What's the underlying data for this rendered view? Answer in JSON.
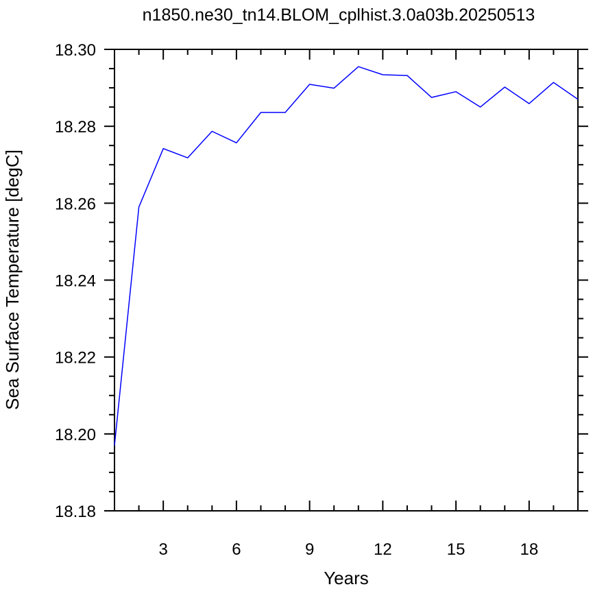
{
  "chart_data": {
    "type": "line",
    "title": "n1850.ne30_tn14.BLOM_cplhist.3.0a03b.20250513",
    "xlabel": "Years",
    "ylabel": "Sea Surface Temperature [degC]",
    "xlim": [
      1,
      20
    ],
    "ylim": [
      18.18,
      18.3
    ],
    "x_ticks": [
      3,
      6,
      9,
      12,
      15,
      18
    ],
    "x_tick_labels": [
      "3",
      "6",
      "9",
      "12",
      "15",
      "18"
    ],
    "y_ticks": [
      18.18,
      18.2,
      18.22,
      18.24,
      18.26,
      18.28,
      18.3
    ],
    "y_tick_labels": [
      "18.18",
      "18.20",
      "18.22",
      "18.24",
      "18.26",
      "18.28",
      "18.30"
    ],
    "grid": false,
    "series": [
      {
        "color": "#0000ff",
        "x": [
          1,
          2,
          3,
          4,
          5,
          6,
          7,
          8,
          9,
          10,
          11,
          12,
          13,
          14,
          15,
          16,
          17,
          18,
          19,
          20
        ],
        "values": [
          18.197,
          18.259,
          18.2742,
          18.2718,
          18.2787,
          18.2757,
          18.2836,
          18.2836,
          18.2909,
          18.2899,
          18.2955,
          18.2934,
          18.2932,
          18.2875,
          18.289,
          18.285,
          18.2902,
          18.2859,
          18.2914,
          18.287
        ]
      }
    ]
  }
}
